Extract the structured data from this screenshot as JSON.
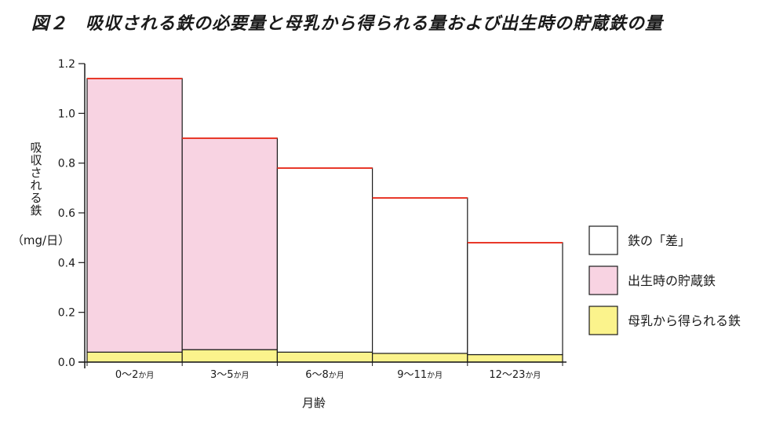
{
  "title": "図２　吸収される鉄の必要量と母乳から得られる量および出生時の貯蔵鉄の量",
  "colors": {
    "pink": "#f8d3e2",
    "yellow": "#fbf38c",
    "white": "#ffffff",
    "red": "#e8392a",
    "outline": "#1a1a1a"
  },
  "chart_data": {
    "type": "bar",
    "ylabel_lines": [
      "吸",
      "収",
      "さ",
      "れ",
      "る",
      "鉄"
    ],
    "yunit": "（mg/日）",
    "xlabel": "月齢",
    "ylim": [
      0,
      1.2
    ],
    "ytick_values": [
      0,
      0.2,
      0.4,
      0.6,
      0.8,
      1.0,
      1.2
    ],
    "ytick_labels": [
      "0.0",
      "0.2",
      "0.4",
      "0.6",
      "0.8",
      "1.0",
      "1.2"
    ],
    "categories": [
      {
        "main": "0〜2",
        "small": "か月"
      },
      {
        "main": "3〜5",
        "small": "か月"
      },
      {
        "main": "6〜8",
        "small": "か月"
      },
      {
        "main": "9〜11",
        "small": "か月"
      },
      {
        "main": "12〜23",
        "small": "か月"
      }
    ],
    "required_total": [
      1.14,
      0.9,
      0.78,
      0.66,
      0.48
    ],
    "series": [
      {
        "name": "母乳から得られる鉄",
        "color": "#fbf38c",
        "values": [
          0.04,
          0.05,
          0.04,
          0.035,
          0.03
        ]
      },
      {
        "name": "出生時の貯蔵鉄",
        "color": "#f8d3e2",
        "values": [
          1.1,
          0.85,
          0.0,
          0.0,
          0.0
        ]
      },
      {
        "name": "鉄の「差」",
        "color": "#ffffff",
        "values": [
          0.0,
          0.0,
          0.74,
          0.625,
          0.45
        ]
      }
    ],
    "legend": [
      {
        "label": "鉄の「差」",
        "color": "#ffffff"
      },
      {
        "label": "出生時の貯蔵鉄",
        "color": "#f8d3e2"
      },
      {
        "label": "母乳から得られる鉄",
        "color": "#fbf38c"
      }
    ],
    "legend_position": "right"
  }
}
